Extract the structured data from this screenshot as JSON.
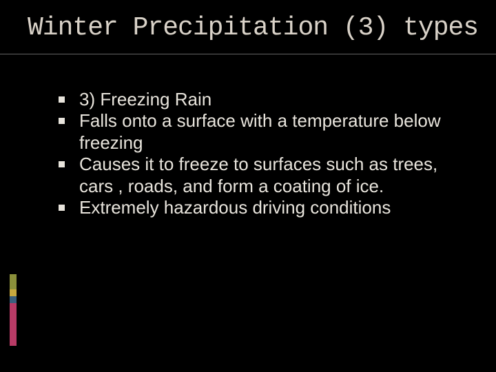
{
  "slide": {
    "title": "Winter Precipitation (3) types",
    "title_font": "Consolas, Courier New, monospace",
    "title_fontsize": 38,
    "title_color": "#d9d2c8",
    "body_font": "Segoe UI, Helvetica Neue, Arial, sans-serif",
    "body_fontsize": 26,
    "body_color": "#e8e4dc",
    "background_color": "#000000",
    "rule_color": "#666666",
    "bullets": [
      "3) Freezing Rain",
      "Falls onto a surface with a temperature below freezing",
      "Causes it to freeze to surfaces such as trees, cars , roads, and form a coating of ice.",
      "Extremely hazardous driving conditions"
    ],
    "accent_colors": {
      "green": "#8a8f3a",
      "yellow": "#c7a93f",
      "blue": "#3a5f7d",
      "red": "#b83b66"
    }
  }
}
